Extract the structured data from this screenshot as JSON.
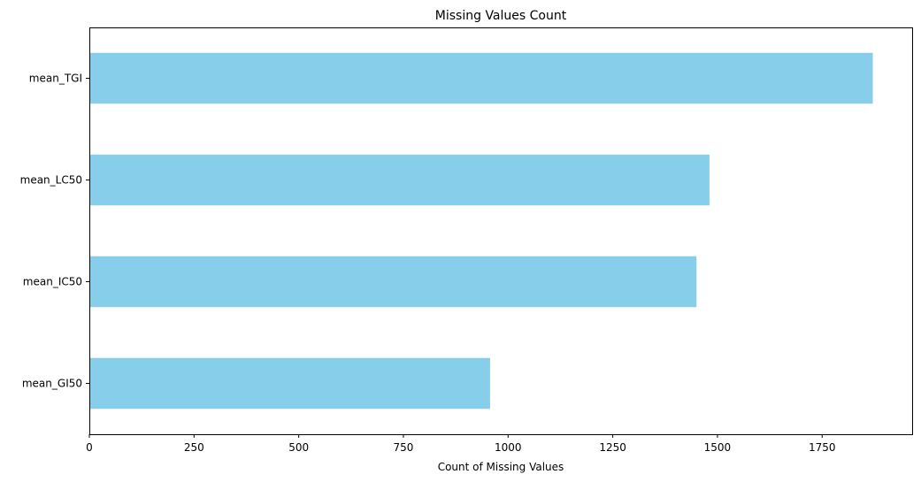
{
  "chart_data": {
    "type": "bar",
    "orientation": "horizontal",
    "title": "Missing Values Count",
    "xlabel": "Count of Missing Values",
    "ylabel": "",
    "categories": [
      "mean_GI50",
      "mean_IC50",
      "mean_LC50",
      "mean_TGI"
    ],
    "values": [
      957,
      1450,
      1481,
      1871
    ],
    "xlim": [
      0,
      1965
    ],
    "xticks": [
      0,
      250,
      500,
      750,
      1000,
      1250,
      1500,
      1750
    ],
    "bar_color": "#87ceeb",
    "grid": false,
    "legend": "none"
  }
}
